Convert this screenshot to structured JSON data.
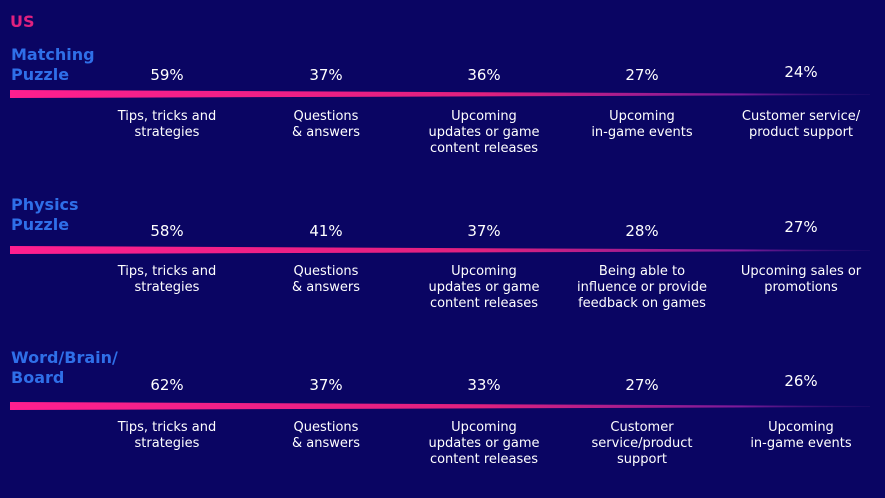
{
  "region": "US",
  "colors": {
    "background": "#0a0563",
    "accent": "#e0217f",
    "category": "#2f6fe8",
    "text": "#ffffff"
  },
  "chart_data": [
    {
      "type": "table",
      "title": "Matching\nPuzzle",
      "items": [
        {
          "value": "59%",
          "label": "Tips, tricks and\nstrategies"
        },
        {
          "value": "37%",
          "label": "Questions\n& answers"
        },
        {
          "value": "36%",
          "label": "Upcoming\nupdates or game\ncontent releases"
        },
        {
          "value": "27%",
          "label": "Upcoming\nin-game events"
        },
        {
          "value": "24%",
          "label": "Customer service/\nproduct support"
        }
      ]
    },
    {
      "type": "table",
      "title": "Physics\nPuzzle",
      "items": [
        {
          "value": "58%",
          "label": "Tips, tricks and\nstrategies"
        },
        {
          "value": "41%",
          "label": "Questions\n& answers"
        },
        {
          "value": "37%",
          "label": "Upcoming\nupdates or game\ncontent releases"
        },
        {
          "value": "28%",
          "label": "Being able to\ninfluence or provide\nfeedback on games"
        },
        {
          "value": "27%",
          "label": "Upcoming sales or\npromotions"
        }
      ]
    },
    {
      "type": "table",
      "title": "Word/Brain/\nBoard",
      "items": [
        {
          "value": "62%",
          "label": "Tips, tricks and\nstrategies"
        },
        {
          "value": "37%",
          "label": "Questions\n& answers"
        },
        {
          "value": "33%",
          "label": "Upcoming\nupdates or game\ncontent releases"
        },
        {
          "value": "27%",
          "label": "Customer\nservice/product\nsupport"
        },
        {
          "value": "26%",
          "label": "Upcoming\nin-game events"
        }
      ]
    }
  ]
}
